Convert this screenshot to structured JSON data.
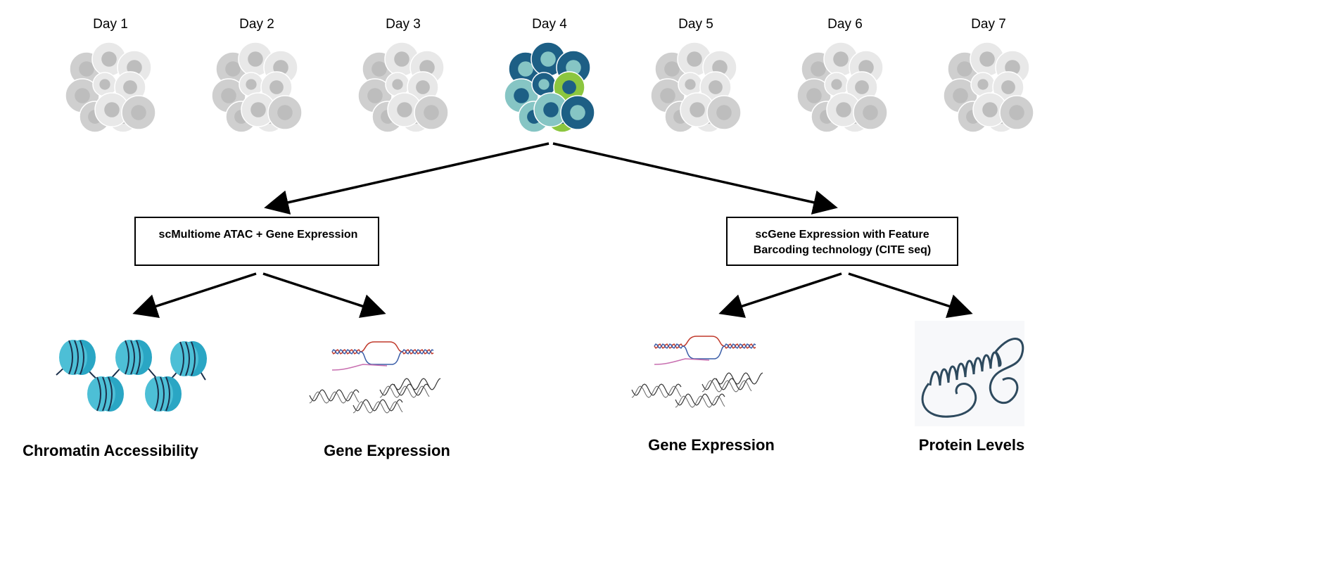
{
  "days": [
    "Day 1",
    "Day 2",
    "Day 3",
    "Day 4",
    "Day 5",
    "Day 6",
    "Day 7"
  ],
  "highlighted_day_index": 3,
  "assays": [
    {
      "line1": "scMultiome ATAC + Gene Expression",
      "line2": ""
    },
    {
      "line1": "scGene Expression with Feature",
      "line2": "Barcoding technology (CITE seq)"
    }
  ],
  "outputs": [
    "Chromatin Accessibility",
    "Gene Expression",
    "Gene Expression",
    "Protein Levels"
  ],
  "colors": {
    "cell_gray_light": "#e8e8e8",
    "cell_gray_mid": "#cfcfcf",
    "cell_gray_dark": "#bdbdbd",
    "navy": "#1d5f85",
    "teal_light": "#86c5c4",
    "green": "#8cc63f",
    "nucleosome": "#4dbfd6",
    "dna_red": "#c0392b",
    "dna_blue": "#3b5ea8",
    "rna_pink": "#c86fb0",
    "protein": "#2e4a5e"
  },
  "icons": [
    "cell-cluster-icon",
    "nucleosome-icon",
    "dna-transcription-icon",
    "protein-icon"
  ]
}
